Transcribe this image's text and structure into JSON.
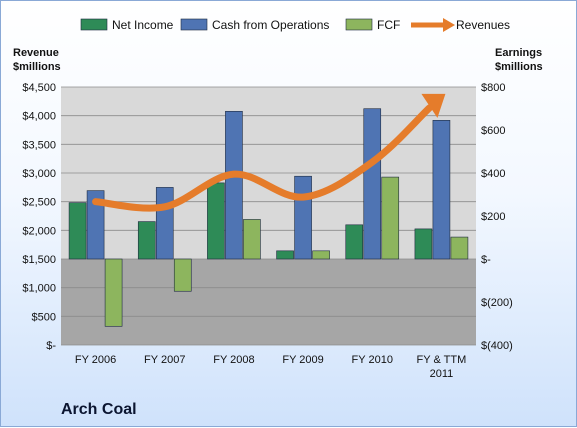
{
  "colors": {
    "net_income": "#2e8b57",
    "cash_ops": "#4f74b3",
    "fcf": "#8db55e",
    "revenues": "#e57c2b",
    "plot_bg": "#d9d9d9",
    "plot_lower_bg": "#a6a6a6",
    "grid": "#8c8c8c"
  },
  "company_name": "Arch Coal",
  "chart_data": {
    "type": "bar",
    "categories": [
      "FY 2006",
      "FY 2007",
      "FY 2008",
      "FY 2009",
      "FY 2010",
      "FY & TTM 2011"
    ],
    "category_lines": [
      [
        "FY 2006"
      ],
      [
        "FY 2007"
      ],
      [
        "FY 2008"
      ],
      [
        "FY 2009"
      ],
      [
        "FY 2010"
      ],
      [
        "FY & TTM",
        "2011"
      ]
    ],
    "left_axis": {
      "title_lines": [
        "Revenue",
        "$millions"
      ],
      "ylim": [
        0,
        4500
      ],
      "ticks": [
        0,
        500,
        1000,
        1500,
        2000,
        2500,
        3000,
        3500,
        4000,
        4500
      ],
      "tick_labels": [
        "$-",
        "$500",
        "$1,000",
        "$1,500",
        "$2,000",
        "$2,500",
        "$3,000",
        "$3,500",
        "$4,000",
        "$4,500"
      ]
    },
    "right_axis": {
      "title_lines": [
        "Earnings",
        "$millions"
      ],
      "ylim": [
        -400,
        800
      ],
      "ticks": [
        -400,
        -200,
        0,
        200,
        400,
        600,
        800
      ],
      "tick_labels": [
        "$(400)",
        "$(200)",
        "$-",
        "$200",
        "$400",
        "$600",
        "$800"
      ]
    },
    "series": [
      {
        "name": "Net Income",
        "type": "bar",
        "axis": "right",
        "color_key": "net_income",
        "values": [
          262,
          174,
          354,
          38,
          159,
          140
        ]
      },
      {
        "name": "Cash from Operations",
        "type": "bar",
        "axis": "right",
        "color_key": "cash_ops",
        "values": [
          318,
          333,
          687,
          385,
          699,
          645
        ]
      },
      {
        "name": "FCF",
        "type": "bar",
        "axis": "right",
        "color_key": "fcf",
        "values": [
          -313,
          -150,
          184,
          38,
          381,
          102
        ]
      },
      {
        "name": "Revenues",
        "type": "line",
        "axis": "left",
        "color_key": "revenues",
        "values": [
          2500,
          2410,
          2980,
          2580,
          3190,
          4310
        ]
      }
    ],
    "grid": true,
    "legend_position": "top"
  }
}
